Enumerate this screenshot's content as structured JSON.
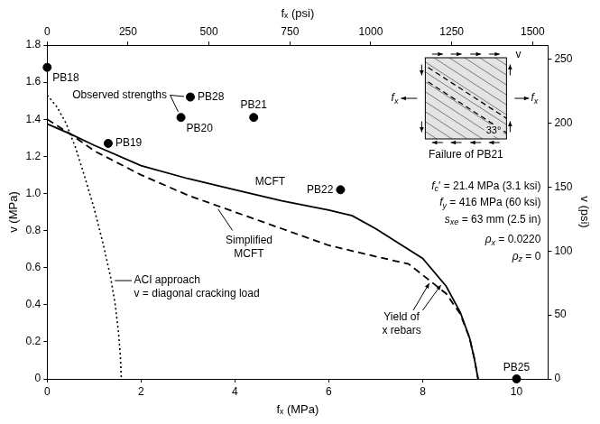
{
  "chart_data": {
    "type": "scatter",
    "x_label": "fₓ (MPa)",
    "x2_label": "fₓ (psi)",
    "y_label": "v (MPa)",
    "y2_label": "v (psi)",
    "xlim": [
      0,
      10.67
    ],
    "xticks": [
      0,
      2,
      4,
      6,
      8,
      10
    ],
    "x2lim": [
      0,
      1547.6
    ],
    "x2ticks": [
      0,
      250,
      500,
      750,
      1000,
      1250,
      1500
    ],
    "ylim": [
      0,
      1.8
    ],
    "yticks": [
      0,
      0.2,
      0.4,
      0.6,
      0.8,
      {
        "value": 1,
        "label": "1.0"
      },
      1.2,
      1.4,
      1.6,
      1.8
    ],
    "y2lim": [
      0,
      261.07
    ],
    "y2ticks": [
      0,
      50,
      100,
      150,
      200,
      250
    ],
    "grid": false,
    "series": [
      {
        "name": "MCFT",
        "type": "line",
        "line_style": "solid",
        "color": "#000000",
        "x": [
          0,
          0.5,
          1,
          2,
          3,
          4,
          5,
          6,
          6.5,
          7,
          7.5,
          8,
          8.5,
          8.8,
          9,
          9.1,
          9.18
        ],
        "values": [
          1.375,
          1.32,
          1.26,
          1.15,
          1.08,
          1.02,
          0.96,
          0.91,
          0.88,
          0.81,
          0.73,
          0.65,
          0.5,
          0.36,
          0.22,
          0.11,
          0
        ]
      },
      {
        "name": "Simplified MCFT",
        "type": "line",
        "line_style": "dashed",
        "color": "#000000",
        "x": [
          0,
          0.5,
          1,
          2,
          3,
          4,
          5,
          6,
          7,
          7.7,
          8,
          8.5,
          8.8,
          9,
          9.1,
          9.18
        ],
        "values": [
          1.4,
          1.32,
          1.23,
          1.1,
          0.99,
          0.9,
          0.81,
          0.72,
          0.66,
          0.62,
          0.56,
          0.46,
          0.35,
          0.22,
          0.11,
          0
        ]
      },
      {
        "name": "ACI approach",
        "type": "line",
        "line_style": "dotted",
        "color": "#000000",
        "x": [
          0,
          0.2,
          0.4,
          0.6,
          0.8,
          1,
          1.2,
          1.35,
          1.45,
          1.52,
          1.56,
          1.58
        ],
        "values": [
          1.53,
          1.47,
          1.38,
          1.25,
          1.09,
          0.92,
          0.72,
          0.55,
          0.4,
          0.25,
          0.12,
          0
        ]
      },
      {
        "name": "Observed strengths",
        "type": "scatter",
        "marker": "circle",
        "color": "#000000",
        "x": [
          0,
          1.3,
          2.85,
          3.05,
          4.4,
          6.25,
          10
        ],
        "values": [
          1.68,
          1.27,
          1.41,
          1.52,
          1.41,
          1.02,
          0
        ],
        "labels": [
          "PB18",
          "PB19",
          "PB20",
          "PB28",
          "PB21",
          "PB22",
          "PB25"
        ]
      }
    ],
    "annotations": {
      "aci_note": "v = diagonal cracking load",
      "yield": "Yield of x rebars"
    },
    "properties": [
      "fc′ = 21.4 MPa (3.1 ksi)",
      "fy = 416 MPa (60 ksi)",
      "sxe = 63 mm (2.5 in)",
      "ρx = 0.0220",
      "ρz = 0"
    ],
    "inset": {
      "caption": "Failure of PB21",
      "angle_label": "33°",
      "force_label": "fx",
      "shear_label": "v"
    }
  }
}
